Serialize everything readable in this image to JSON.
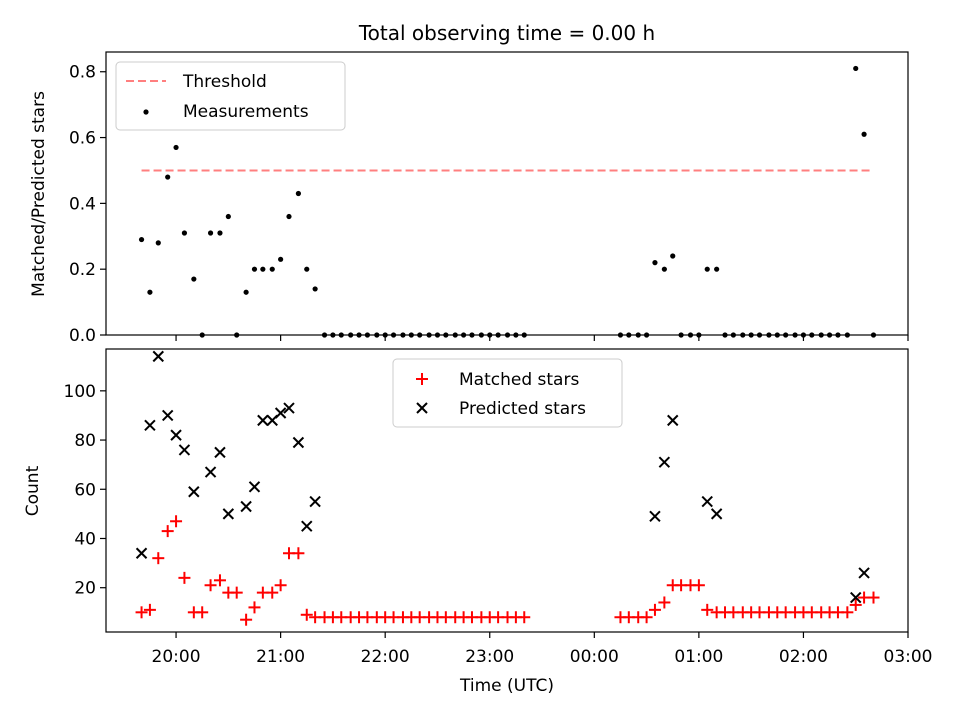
{
  "chart_data": [
    {
      "type": "scatter",
      "title": "Total observing time = 0.00 h",
      "ylabel": "Matched/Predicted stars",
      "xlabel": "",
      "x_unit": "hours since 00:00 UTC",
      "ylim": [
        0,
        0.86
      ],
      "yticks": [
        0.0,
        0.2,
        0.4,
        0.6,
        0.8
      ],
      "ytick_labels": [
        "0.0",
        "0.2",
        "0.4",
        "0.6",
        "0.8"
      ],
      "legend_position": "top-left",
      "series": [
        {
          "name": "Threshold",
          "style": "dashed-line",
          "color": "#ff7f7f",
          "x": [
            -4.33,
            2.67
          ],
          "values": [
            0.5,
            0.5
          ]
        },
        {
          "name": "Measurements",
          "style": "dot",
          "color": "#000000",
          "x": [
            -4.33,
            -4.25,
            -4.17,
            -4.08,
            -4.0,
            -3.92,
            -3.83,
            -3.75,
            -3.67,
            -3.58,
            -3.5,
            -3.42,
            -3.33,
            -3.25,
            -3.17,
            -3.08,
            -3.0,
            -2.92,
            -2.83,
            -2.75,
            -2.67,
            -2.58,
            -2.5,
            -2.42,
            -2.33,
            -2.25,
            -2.17,
            -2.08,
            -2.0,
            -1.92,
            -1.83,
            -1.75,
            -1.67,
            -1.58,
            -1.5,
            -1.42,
            -1.33,
            -1.25,
            -1.17,
            -1.08,
            -1.0,
            -0.92,
            -0.83,
            -0.75,
            -0.67,
            0.25,
            0.33,
            0.42,
            0.5,
            0.58,
            0.67,
            0.75,
            0.83,
            0.92,
            1.0,
            1.08,
            1.17,
            1.25,
            1.33,
            1.42,
            1.5,
            1.58,
            1.67,
            1.75,
            1.83,
            1.92,
            2.0,
            2.08,
            2.17,
            2.25,
            2.33,
            2.42,
            2.5,
            2.58,
            2.67
          ],
          "values": [
            0.29,
            0.13,
            0.28,
            0.48,
            0.57,
            0.31,
            0.17,
            0.0,
            0.31,
            0.31,
            0.36,
            0.0,
            0.13,
            0.2,
            0.2,
            0.2,
            0.23,
            0.36,
            0.43,
            0.2,
            0.14,
            0.0,
            0.0,
            0.0,
            0.0,
            0.0,
            0.0,
            0.0,
            0.0,
            0.0,
            0.0,
            0.0,
            0.0,
            0.0,
            0.0,
            0.0,
            0.0,
            0.0,
            0.0,
            0.0,
            0.0,
            0.0,
            0.0,
            0.0,
            0.0,
            0.0,
            0.0,
            0.0,
            0.0,
            0.22,
            0.2,
            0.24,
            0.0,
            0.0,
            0.0,
            0.2,
            0.2,
            0.0,
            0.0,
            0.0,
            0.0,
            0.0,
            0.0,
            0.0,
            0.0,
            0.0,
            0.0,
            0.0,
            0.0,
            0.0,
            0.0,
            0.0,
            0.81,
            0.61,
            0.0
          ]
        }
      ]
    },
    {
      "type": "scatter",
      "xlabel": "Time (UTC)",
      "ylabel": "Count",
      "x_unit": "hours since 00:00 UTC",
      "xlim": [
        -4.67,
        3.0
      ],
      "xticks": [
        -4,
        -3,
        -2,
        -1,
        0,
        1,
        2,
        3
      ],
      "xtick_labels": [
        "20:00",
        "21:00",
        "22:00",
        "23:00",
        "00:00",
        "01:00",
        "02:00",
        "03:00"
      ],
      "ylim": [
        2,
        117
      ],
      "yticks": [
        20,
        40,
        60,
        80,
        100
      ],
      "ytick_labels": [
        "20",
        "40",
        "60",
        "80",
        "100"
      ],
      "legend_position": "top-center",
      "series": [
        {
          "name": "Matched stars",
          "marker": "+",
          "color": "#ff0000",
          "x": [
            -4.33,
            -4.25,
            -4.17,
            -4.08,
            -4.0,
            -3.92,
            -3.83,
            -3.75,
            -3.67,
            -3.58,
            -3.5,
            -3.42,
            -3.33,
            -3.25,
            -3.17,
            -3.08,
            -3.0,
            -2.92,
            -2.83,
            -2.75,
            -2.67,
            -2.58,
            -2.5,
            -2.42,
            -2.33,
            -2.25,
            -2.17,
            -2.08,
            -2.0,
            -1.92,
            -1.83,
            -1.75,
            -1.67,
            -1.58,
            -1.5,
            -1.42,
            -1.33,
            -1.25,
            -1.17,
            -1.08,
            -1.0,
            -0.92,
            -0.83,
            -0.75,
            -0.67,
            0.25,
            0.33,
            0.42,
            0.5,
            0.58,
            0.67,
            0.75,
            0.83,
            0.92,
            1.0,
            1.08,
            1.17,
            1.25,
            1.33,
            1.42,
            1.5,
            1.58,
            1.67,
            1.75,
            1.83,
            1.92,
            2.0,
            2.08,
            2.17,
            2.25,
            2.33,
            2.42,
            2.5,
            2.58,
            2.67
          ],
          "values": [
            10,
            11,
            32,
            43,
            47,
            24,
            10,
            10,
            21,
            23,
            18,
            18,
            7,
            12,
            18,
            18,
            21,
            34,
            34,
            9,
            8,
            8,
            8,
            8,
            8,
            8,
            8,
            8,
            8,
            8,
            8,
            8,
            8,
            8,
            8,
            8,
            8,
            8,
            8,
            8,
            8,
            8,
            8,
            8,
            8,
            8,
            8,
            8,
            8,
            11,
            14,
            21,
            21,
            21,
            21,
            11,
            10,
            10,
            10,
            10,
            10,
            10,
            10,
            10,
            10,
            10,
            10,
            10,
            10,
            10,
            10,
            10,
            13,
            16,
            16
          ]
        },
        {
          "name": "Predicted stars",
          "marker": "x",
          "color": "#000000",
          "x": [
            -4.33,
            -4.25,
            -4.17,
            -4.08,
            -4.0,
            -3.92,
            -3.83,
            -3.67,
            -3.58,
            -3.5,
            -3.33,
            -3.25,
            -3.17,
            -3.08,
            -3.0,
            -2.92,
            -2.83,
            -2.75,
            -2.67,
            0.58,
            0.67,
            0.75,
            1.08,
            1.17,
            2.5,
            2.58
          ],
          "values": [
            34,
            86,
            114,
            90,
            82,
            76,
            59,
            67,
            75,
            50,
            53,
            61,
            88,
            88,
            91,
            93,
            79,
            45,
            55,
            49,
            71,
            88,
            55,
            50,
            16,
            26
          ]
        }
      ]
    }
  ]
}
